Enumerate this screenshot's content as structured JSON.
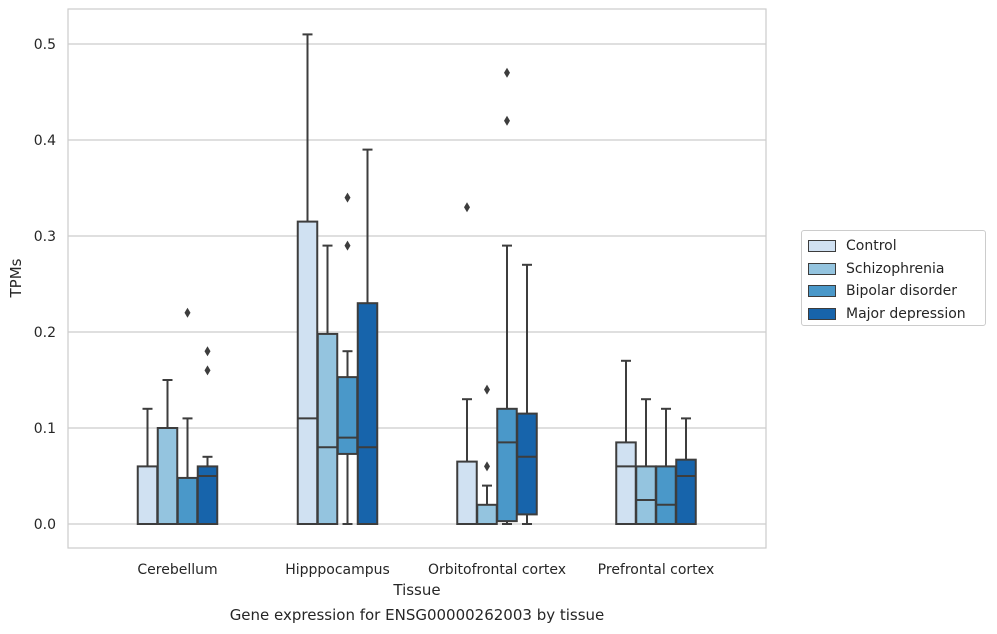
{
  "chart_data": {
    "type": "box",
    "xlabel": "Tissue",
    "ylabel": "TPMs",
    "caption": "Gene expression for ENSG00000262003 by tissue",
    "ylim": [
      -0.025,
      0.54
    ],
    "yticks": [
      "0.0",
      "0.1",
      "0.2",
      "0.3",
      "0.4",
      "0.5"
    ],
    "grid": true,
    "legend_position": "right",
    "categories": [
      "Cerebellum",
      "Hipppocampus",
      "Orbitofrontal cortex",
      "Prefrontal cortex"
    ],
    "series": [
      {
        "name": "Control",
        "color": "#d0e1f2",
        "boxes": [
          {
            "whislo": 0.0,
            "q1": 0.0,
            "med": 0.0,
            "q3": 0.06,
            "whishi": 0.12,
            "fliers": []
          },
          {
            "whislo": 0.0,
            "q1": 0.0,
            "med": 0.11,
            "q3": 0.315,
            "whishi": 0.51,
            "fliers": []
          },
          {
            "whislo": 0.0,
            "q1": 0.0,
            "med": 0.0,
            "q3": 0.065,
            "whishi": 0.13,
            "fliers": [
              0.33
            ]
          },
          {
            "whislo": 0.0,
            "q1": 0.0,
            "med": 0.06,
            "q3": 0.085,
            "whishi": 0.17,
            "fliers": []
          }
        ]
      },
      {
        "name": "Schizophrenia",
        "color": "#94c4df",
        "boxes": [
          {
            "whislo": 0.0,
            "q1": 0.0,
            "med": 0.0,
            "q3": 0.1,
            "whishi": 0.15,
            "fliers": []
          },
          {
            "whislo": 0.0,
            "q1": 0.0,
            "med": 0.08,
            "q3": 0.198,
            "whishi": 0.29,
            "fliers": []
          },
          {
            "whislo": 0.0,
            "q1": 0.0,
            "med": 0.0,
            "q3": 0.02,
            "whishi": 0.04,
            "fliers": [
              0.06,
              0.14
            ]
          },
          {
            "whislo": 0.0,
            "q1": 0.0,
            "med": 0.025,
            "q3": 0.06,
            "whishi": 0.13,
            "fliers": []
          }
        ]
      },
      {
        "name": "Bipolar disorder",
        "color": "#4a98c9",
        "boxes": [
          {
            "whislo": 0.0,
            "q1": 0.0,
            "med": 0.0,
            "q3": 0.048,
            "whishi": 0.11,
            "fliers": [
              0.22
            ]
          },
          {
            "whislo": 0.0,
            "q1": 0.073,
            "med": 0.09,
            "q3": 0.153,
            "whishi": 0.18,
            "fliers": [
              0.29,
              0.34
            ]
          },
          {
            "whislo": 0.0,
            "q1": 0.003,
            "med": 0.085,
            "q3": 0.12,
            "whishi": 0.29,
            "fliers": [
              0.42,
              0.47
            ]
          },
          {
            "whislo": 0.0,
            "q1": 0.0,
            "med": 0.02,
            "q3": 0.06,
            "whishi": 0.12,
            "fliers": []
          }
        ]
      },
      {
        "name": "Major depression",
        "color": "#1764ab",
        "boxes": [
          {
            "whislo": 0.0,
            "q1": 0.0,
            "med": 0.05,
            "q3": 0.06,
            "whishi": 0.07,
            "fliers": [
              0.16,
              0.18
            ]
          },
          {
            "whislo": 0.0,
            "q1": 0.0,
            "med": 0.08,
            "q3": 0.23,
            "whishi": 0.39,
            "fliers": []
          },
          {
            "whislo": 0.0,
            "q1": 0.01,
            "med": 0.07,
            "q3": 0.115,
            "whishi": 0.27,
            "fliers": []
          },
          {
            "whislo": 0.0,
            "q1": 0.0,
            "med": 0.05,
            "q3": 0.067,
            "whishi": 0.11,
            "fliers": []
          }
        ]
      }
    ]
  }
}
